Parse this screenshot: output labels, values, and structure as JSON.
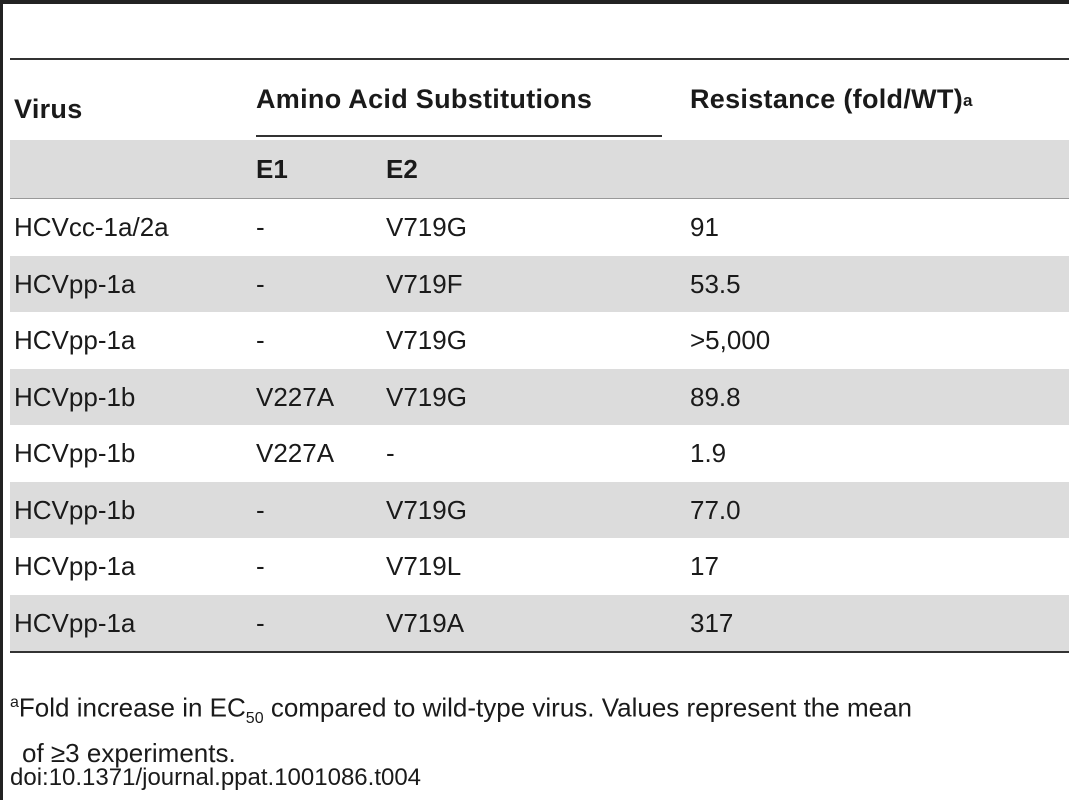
{
  "table": {
    "headers": {
      "virus": "Virus",
      "amino_acid_substitutions": "Amino Acid Substitutions",
      "resistance": "Resistance (fold/WT)",
      "resistance_footnote_mark": "a",
      "e1": "E1",
      "e2": "E2"
    },
    "rows": [
      {
        "virus": "HCVcc-1a/2a",
        "e1": "-",
        "e2": "V719G",
        "resistance": "91"
      },
      {
        "virus": "HCVpp-1a",
        "e1": "-",
        "e2": "V719F",
        "resistance": "53.5"
      },
      {
        "virus": "HCVpp-1a",
        "e1": "-",
        "e2": "V719G",
        "resistance": ">5,000"
      },
      {
        "virus": "HCVpp-1b",
        "e1": "V227A",
        "e2": "V719G",
        "resistance": "89.8"
      },
      {
        "virus": "HCVpp-1b",
        "e1": "V227A",
        "e2": "-",
        "resistance": "1.9"
      },
      {
        "virus": "HCVpp-1b",
        "e1": "-",
        "e2": "V719G",
        "resistance": "77.0"
      },
      {
        "virus": "HCVpp-1a",
        "e1": "-",
        "e2": "V719L",
        "resistance": "17"
      },
      {
        "virus": "HCVpp-1a",
        "e1": "-",
        "e2": "V719A",
        "resistance": "317"
      }
    ]
  },
  "footnote": {
    "mark": "a",
    "text_before_sub": "Fold increase in EC",
    "subscript": "50",
    "text_after_sub": " compared to wild-type virus. Values represent the mean",
    "line2": "of ≥3 experiments."
  },
  "doi": "doi:10.1371/journal.ppat.1001086.t004"
}
